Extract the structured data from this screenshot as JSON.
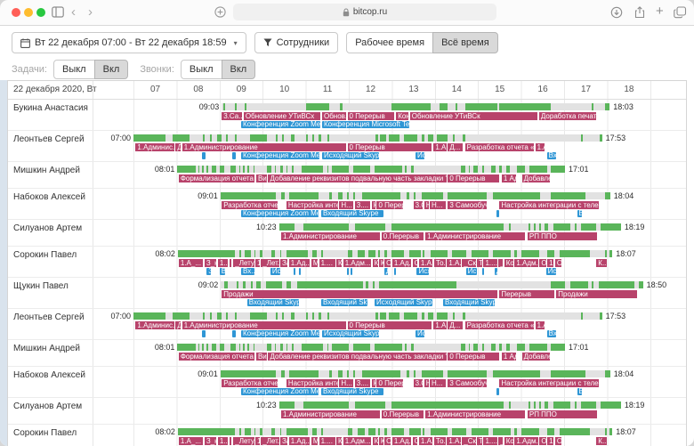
{
  "browser": {
    "url": "bitcop.ru"
  },
  "icons": {
    "caret_down": "▾",
    "chevron_left": "‹",
    "chevron_right": "›",
    "plus": "+"
  },
  "toolbar": {
    "date_range": "Вт 22 декабря 07:00 - Вт 22 декабря 18:59",
    "employees": "Сотрудники",
    "work_time": "Рабочее время",
    "all_time": "Всё время",
    "tasks_label": "Задачи:",
    "calls_label": "Звонки:",
    "off": "Выкл",
    "on": "Вкл"
  },
  "colors": {
    "activity": "#5ab55a",
    "task": "#b8436b",
    "call": "#2f96d5",
    "track": "#e2e2e2",
    "leftstrip": "#d9e3ed"
  },
  "table": {
    "date_header": "22 декабря 2020, Вт",
    "hours": [
      "07",
      "08",
      "09",
      "10",
      "11",
      "12",
      "13",
      "14",
      "15",
      "16",
      "17",
      "18"
    ]
  },
  "rows": [
    {
      "name": "Букина Анастасия",
      "start": "09:03",
      "end": "18:03",
      "track": [
        9.05,
        18.06
      ],
      "activity": [
        [
          9.08,
          9.13
        ],
        [
          9.35,
          9.4
        ],
        [
          9.58,
          9.62
        ],
        [
          11.0,
          11.55
        ],
        [
          11.8,
          11.85
        ],
        [
          13.0,
          13.9
        ],
        [
          14.1,
          14.3
        ],
        [
          14.48,
          14.52
        ],
        [
          14.7,
          15.45
        ],
        [
          15.5,
          16.7
        ],
        [
          17.64,
          17.68
        ],
        [
          17.95,
          18.06
        ]
      ],
      "tasks": [
        {
          "label": "3.Са...",
          "from": 9.05,
          "to": 9.52
        },
        {
          "label": "Обновление УТиВСх",
          "from": 9.56,
          "to": 11.33
        },
        {
          "label": "Обнов...",
          "from": 11.38,
          "to": 11.93
        },
        {
          "label": "0 Перерыв",
          "from": 11.97,
          "to": 13.05
        },
        {
          "label": "Кон",
          "from": 13.1,
          "to": 13.38
        },
        {
          "label": "Обновление УТиВСк",
          "from": 13.42,
          "to": 16.38
        },
        {
          "label": "Доработка печатной фор...",
          "from": 16.42,
          "to": 17.75
        }
      ],
      "calls": [
        {
          "label": "Конференция Zoom Meeting",
          "from": 9.5,
          "to": 11.33
        },
        {
          "label": "Конференция Microsoft Teams",
          "from": 11.38,
          "to": 13.4
        }
      ]
    },
    {
      "name": "Леонтьев Сергей",
      "start": "07:00",
      "end": "17:53",
      "track": [
        7.0,
        17.88
      ],
      "activity": [
        [
          7.0,
          7.75
        ],
        [
          7.9,
          8.3
        ],
        [
          8.62,
          8.66
        ],
        [
          8.78,
          8.82
        ],
        [
          8.95,
          9.05
        ],
        [
          9.15,
          9.2
        ],
        [
          9.35,
          9.4
        ],
        [
          9.7,
          10.1
        ],
        [
          10.3,
          10.35
        ],
        [
          10.45,
          10.5
        ],
        [
          10.65,
          10.75
        ],
        [
          11.0,
          11.05
        ],
        [
          11.15,
          11.2
        ],
        [
          11.3,
          11.35
        ],
        [
          11.5,
          11.55
        ],
        [
          12.62,
          12.68
        ],
        [
          12.72,
          12.87
        ],
        [
          12.93,
          13.18
        ],
        [
          13.28,
          13.6
        ],
        [
          13.7,
          13.76
        ],
        [
          13.84,
          13.96
        ],
        [
          14.05,
          14.3
        ],
        [
          14.42,
          14.46
        ],
        [
          14.65,
          14.7
        ],
        [
          17.4,
          17.44
        ],
        [
          17.82,
          17.88
        ]
      ],
      "tasks": [
        {
          "label": "1.Админис...",
          "from": 7.05,
          "to": 7.95
        },
        {
          "label": "Д",
          "from": 7.98,
          "to": 8.1
        },
        {
          "label": "1.Администрирование",
          "from": 8.13,
          "to": 11.93
        },
        {
          "label": "0 Перерыв",
          "from": 11.97,
          "to": 13.93
        },
        {
          "label": "1.А...",
          "from": 13.97,
          "to": 14.27
        },
        {
          "label": "Д...",
          "from": 14.3,
          "to": 14.65
        },
        {
          "label": "Разработка отчета «Пр...",
          "from": 14.7,
          "to": 16.3
        },
        {
          "label": "1.А",
          "from": 16.33,
          "to": 16.55
        }
      ],
      "calls": [
        {
          "label": "",
          "from": 8.6,
          "to": 8.68
        },
        {
          "label": "",
          "from": 9.3,
          "to": 9.38
        },
        {
          "label": "Конференция Zoom Meeting",
          "from": 9.5,
          "to": 11.32
        },
        {
          "label": "Исходящий Skype",
          "from": 11.38,
          "to": 12.7
        },
        {
          "label": "Ис",
          "from": 13.55,
          "to": 13.75
        },
        {
          "label": "Вх",
          "from": 16.6,
          "to": 16.82
        }
      ]
    },
    {
      "name": "Мишкин Андрей",
      "start": "08:01",
      "end": "17:01",
      "track": [
        8.02,
        17.02
      ],
      "activity": [
        [
          8.02,
          8.45
        ],
        [
          8.5,
          8.53
        ],
        [
          8.6,
          8.63
        ],
        [
          8.7,
          8.73
        ],
        [
          8.82,
          8.92
        ],
        [
          9.0,
          9.1
        ],
        [
          9.25,
          9.38
        ],
        [
          9.45,
          9.48
        ],
        [
          9.55,
          9.58
        ],
        [
          9.65,
          9.68
        ],
        [
          9.78,
          9.82
        ],
        [
          10.1,
          10.2
        ],
        [
          10.28,
          10.31
        ],
        [
          10.4,
          10.48
        ],
        [
          10.55,
          10.58
        ],
        [
          10.68,
          10.71
        ],
        [
          10.9,
          11.4
        ],
        [
          11.5,
          11.53
        ],
        [
          11.6,
          12.0
        ],
        [
          12.1,
          12.5
        ],
        [
          12.6,
          13.25
        ],
        [
          13.3,
          13.35
        ],
        [
          13.45,
          13.5
        ],
        [
          14.6,
          14.7
        ],
        [
          14.78,
          14.81
        ],
        [
          14.9,
          15.0
        ],
        [
          15.1,
          15.15
        ],
        [
          15.3,
          15.4
        ],
        [
          15.5,
          15.55
        ],
        [
          15.65,
          15.75
        ],
        [
          15.9,
          16.1
        ],
        [
          16.2,
          16.6
        ],
        [
          16.7,
          17.02
        ]
      ],
      "tasks": [
        {
          "label": "Формализация отчета",
          "from": 8.05,
          "to": 9.82
        },
        {
          "label": "Вид",
          "from": 9.85,
          "to": 10.1
        },
        {
          "label": "Добавление реквизитов подвальную часть закладки \"Товары (У...",
          "from": 10.13,
          "to": 14.27
        },
        {
          "label": "0 Перерыв",
          "from": 14.3,
          "to": 15.5
        },
        {
          "label": "1 Ад...",
          "from": 15.55,
          "to": 15.88
        },
        {
          "label": "Добавлени...",
          "from": 16.02,
          "to": 16.67
        }
      ],
      "calls": []
    },
    {
      "name": "Набоков Алексей",
      "start": "09:01",
      "end": "18:04",
      "track": [
        9.02,
        18.07
      ],
      "activity": [
        [
          9.02,
          10.3
        ],
        [
          10.42,
          10.52
        ],
        [
          10.62,
          11.3
        ],
        [
          11.55,
          11.6
        ],
        [
          11.75,
          11.85
        ],
        [
          11.95,
          12.0
        ],
        [
          12.1,
          12.15
        ],
        [
          12.3,
          13.2
        ],
        [
          13.35,
          13.4
        ],
        [
          13.5,
          13.55
        ],
        [
          13.7,
          14.2
        ],
        [
          14.3,
          15.2
        ],
        [
          15.35,
          16.45
        ],
        [
          16.7,
          17.5
        ],
        [
          17.95,
          18.07
        ]
      ],
      "tasks": [
        {
          "label": "Разработка отчета «...",
          "from": 9.05,
          "to": 10.35
        },
        {
          "label": "Настройка интег...",
          "from": 10.55,
          "to": 11.75
        },
        {
          "label": "Н...",
          "from": 11.78,
          "to": 12.1
        },
        {
          "label": "3....",
          "from": 12.14,
          "to": 12.5
        },
        {
          "label": "К",
          "from": 12.53,
          "to": 12.62
        },
        {
          "label": "0 Перерыв",
          "from": 12.65,
          "to": 13.27
        },
        {
          "label": "3.С",
          "from": 13.5,
          "to": 13.72
        },
        {
          "label": "Н",
          "from": 13.75,
          "to": 13.85
        },
        {
          "label": "Н...",
          "from": 13.88,
          "to": 14.25
        },
        {
          "label": "3 Самообучение",
          "from": 14.3,
          "to": 15.2
        },
        {
          "label": "Настройка интеграции с телефонией",
          "from": 15.5,
          "to": 17.8
        }
      ],
      "calls": [
        {
          "label": "Конференция Zoom Meeting",
          "from": 9.5,
          "to": 11.3
        },
        {
          "label": "Входящий Skype",
          "from": 11.36,
          "to": 12.8
        },
        {
          "label": "",
          "from": 15.44,
          "to": 15.5
        },
        {
          "label": "В",
          "from": 17.3,
          "to": 17.42
        }
      ]
    },
    {
      "name": "Силуанов Артем",
      "start": "10:23",
      "end": "18:19",
      "track": [
        10.38,
        18.32
      ],
      "activity": [
        [
          10.38,
          10.75
        ],
        [
          10.95,
          12.0
        ],
        [
          12.14,
          12.85
        ],
        [
          13.0,
          15.6
        ],
        [
          15.72,
          15.76
        ],
        [
          16.18,
          16.22
        ],
        [
          16.3,
          16.34
        ],
        [
          16.42,
          16.46
        ],
        [
          16.55,
          16.62
        ],
        [
          16.75,
          17.15
        ],
        [
          17.25,
          17.3
        ],
        [
          17.4,
          17.75
        ],
        [
          17.85,
          18.32
        ]
      ],
      "tasks": [
        {
          "label": "1.Администрирование",
          "from": 10.43,
          "to": 12.72
        },
        {
          "label": "0.Перерыв",
          "from": 12.76,
          "to": 13.74
        },
        {
          "label": "1.Администрирование",
          "from": 13.78,
          "to": 16.1
        },
        {
          "label": "РП ППО",
          "from": 16.15,
          "to": 17.77
        }
      ],
      "calls": []
    },
    {
      "name": "Сорокин Павел",
      "start": "08:02",
      "end": "18:07",
      "track": [
        8.03,
        18.12
      ],
      "activity": [
        [
          8.03,
          9.35
        ],
        [
          9.45,
          9.5
        ],
        [
          9.58,
          9.72
        ],
        [
          9.8,
          9.84
        ],
        [
          9.93,
          10.0
        ],
        [
          10.2,
          10.28
        ],
        [
          10.4,
          10.44
        ],
        [
          10.55,
          11.05
        ],
        [
          11.15,
          11.25
        ],
        [
          11.35,
          11.4
        ],
        [
          11.98,
          12.08
        ],
        [
          12.2,
          12.37
        ],
        [
          12.45,
          12.62
        ],
        [
          12.68,
          12.72
        ],
        [
          12.82,
          12.88
        ],
        [
          13.0,
          13.28
        ],
        [
          13.4,
          13.67
        ],
        [
          13.72,
          13.76
        ],
        [
          13.9,
          14.3
        ],
        [
          14.4,
          14.72
        ],
        [
          14.85,
          15.25
        ],
        [
          15.35,
          15.76
        ],
        [
          15.85,
          15.9
        ],
        [
          16.0,
          16.42
        ],
        [
          16.6,
          16.78
        ],
        [
          16.9,
          17.6
        ],
        [
          17.95,
          18.0
        ],
        [
          18.05,
          18.12
        ]
      ],
      "tasks": [
        {
          "label": "1.А_...",
          "from": 8.05,
          "to": 8.62
        },
        {
          "label": "З_н",
          "from": 8.65,
          "to": 8.93
        },
        {
          "label": "1...",
          "from": 8.96,
          "to": 9.2
        },
        {
          "label": "|",
          "from": 9.23,
          "to": 9.28
        },
        {
          "label": "_Лету...",
          "from": 9.32,
          "to": 9.8
        },
        {
          "label": "1",
          "from": 9.83,
          "to": 9.93
        },
        {
          "label": "_Лет...",
          "from": 9.96,
          "to": 10.38
        },
        {
          "label": "За",
          "from": 10.41,
          "to": 10.58
        },
        {
          "label": "1.Ад...",
          "from": 10.61,
          "to": 11.1
        },
        {
          "label": "М",
          "from": 11.13,
          "to": 11.28
        },
        {
          "label": "1....",
          "from": 11.31,
          "to": 11.68
        },
        {
          "label": "К",
          "from": 11.71,
          "to": 11.84
        },
        {
          "label": "1.Адм...",
          "from": 11.87,
          "to": 12.52
        },
        {
          "label": "К",
          "from": 12.55,
          "to": 12.68
        },
        {
          "label": "К",
          "from": 12.7,
          "to": 12.8
        },
        {
          "label": "О...",
          "from": 12.83,
          "to": 12.98
        },
        {
          "label": "1.Ад...",
          "from": 13.01,
          "to": 13.45
        },
        {
          "label": "О...",
          "from": 13.48,
          "to": 13.6
        },
        {
          "label": "1.А...",
          "from": 13.63,
          "to": 13.95
        },
        {
          "label": "То...",
          "from": 13.98,
          "to": 14.25
        },
        {
          "label": "1.А...",
          "from": 14.28,
          "to": 14.6
        },
        {
          "label": "_Ск...",
          "from": 14.63,
          "to": 14.95
        },
        {
          "label": "Т...",
          "from": 14.98,
          "to": 15.1
        },
        {
          "label": "1....",
          "from": 15.13,
          "to": 15.45
        },
        {
          "label": "_...",
          "from": 15.48,
          "to": 15.58
        },
        {
          "label": "Кон",
          "from": 15.61,
          "to": 15.82
        },
        {
          "label": "1.Адм...",
          "from": 15.85,
          "to": 16.4
        },
        {
          "label": "Об",
          "from": 16.43,
          "to": 16.58
        },
        {
          "label": "1.А",
          "from": 16.61,
          "to": 16.76
        },
        {
          "label": "Об",
          "from": 16.79,
          "to": 16.94
        },
        {
          "label": "К...",
          "from": 17.75,
          "to": 18.0
        }
      ],
      "calls": [
        {
          "label": "З",
          "from": 8.7,
          "to": 8.8
        },
        {
          "label": "В:",
          "from": 9.0,
          "to": 9.12
        },
        {
          "label": "Вх...",
          "from": 9.5,
          "to": 9.8
        },
        {
          "label": "Ис",
          "from": 10.18,
          "to": 10.4
        },
        {
          "label": "",
          "from": 10.72,
          "to": 10.76
        },
        {
          "label": "",
          "from": 10.84,
          "to": 10.88
        },
        {
          "label": "",
          "from": 11.95,
          "to": 11.99
        },
        {
          "label": "",
          "from": 12.05,
          "to": 12.09
        },
        {
          "label": "Д",
          "from": 12.82,
          "to": 12.9
        },
        {
          "label": "",
          "from": 13.05,
          "to": 13.09
        },
        {
          "label": "Исх",
          "from": 13.58,
          "to": 13.85
        },
        {
          "label": "Ис",
          "from": 14.72,
          "to": 14.98
        },
        {
          "label": "",
          "from": 15.1,
          "to": 15.14
        },
        {
          "label": "Д",
          "from": 15.38,
          "to": 15.46
        },
        {
          "label": "Ис",
          "from": 16.58,
          "to": 16.82
        }
      ]
    },
    {
      "name": "Щукин Павел",
      "start": "09:02",
      "end": "18:50",
      "track": [
        9.03,
        18.83
      ],
      "activity": [
        [
          9.1,
          9.2
        ],
        [
          9.4,
          9.44
        ],
        [
          9.55,
          9.6
        ],
        [
          9.72,
          9.76
        ],
        [
          9.85,
          9.95
        ],
        [
          10.08,
          10.45
        ],
        [
          10.55,
          10.65
        ],
        [
          10.8,
          12.33
        ],
        [
          12.4,
          12.45
        ],
        [
          12.55,
          12.6
        ],
        [
          12.7,
          14.49
        ],
        [
          16.7,
          17.02
        ],
        [
          17.15,
          17.56
        ],
        [
          17.64,
          17.68
        ],
        [
          17.8,
          18.63
        ],
        [
          18.73,
          18.83
        ]
      ],
      "tasks": [
        {
          "label": "Продажи",
          "from": 9.05,
          "to": 15.45
        },
        {
          "label": "Перерыв",
          "from": 15.5,
          "to": 16.78
        },
        {
          "label": "Продажи",
          "from": 16.82,
          "to": 18.7
        }
      ],
      "calls": [
        {
          "label": "Входящий Skype",
          "from": 9.64,
          "to": 10.84
        },
        {
          "label": "Входящий Skype",
          "from": 11.36,
          "to": 12.43
        },
        {
          "label": "Исходящий Skype",
          "from": 12.6,
          "to": 13.94
        },
        {
          "label": "Входящий Skype",
          "from": 14.19,
          "to": 15.39
        }
      ]
    },
    {
      "ref": 1
    },
    {
      "ref": 2
    },
    {
      "ref": 3
    },
    {
      "ref": 4
    },
    {
      "ref": 5
    }
  ]
}
